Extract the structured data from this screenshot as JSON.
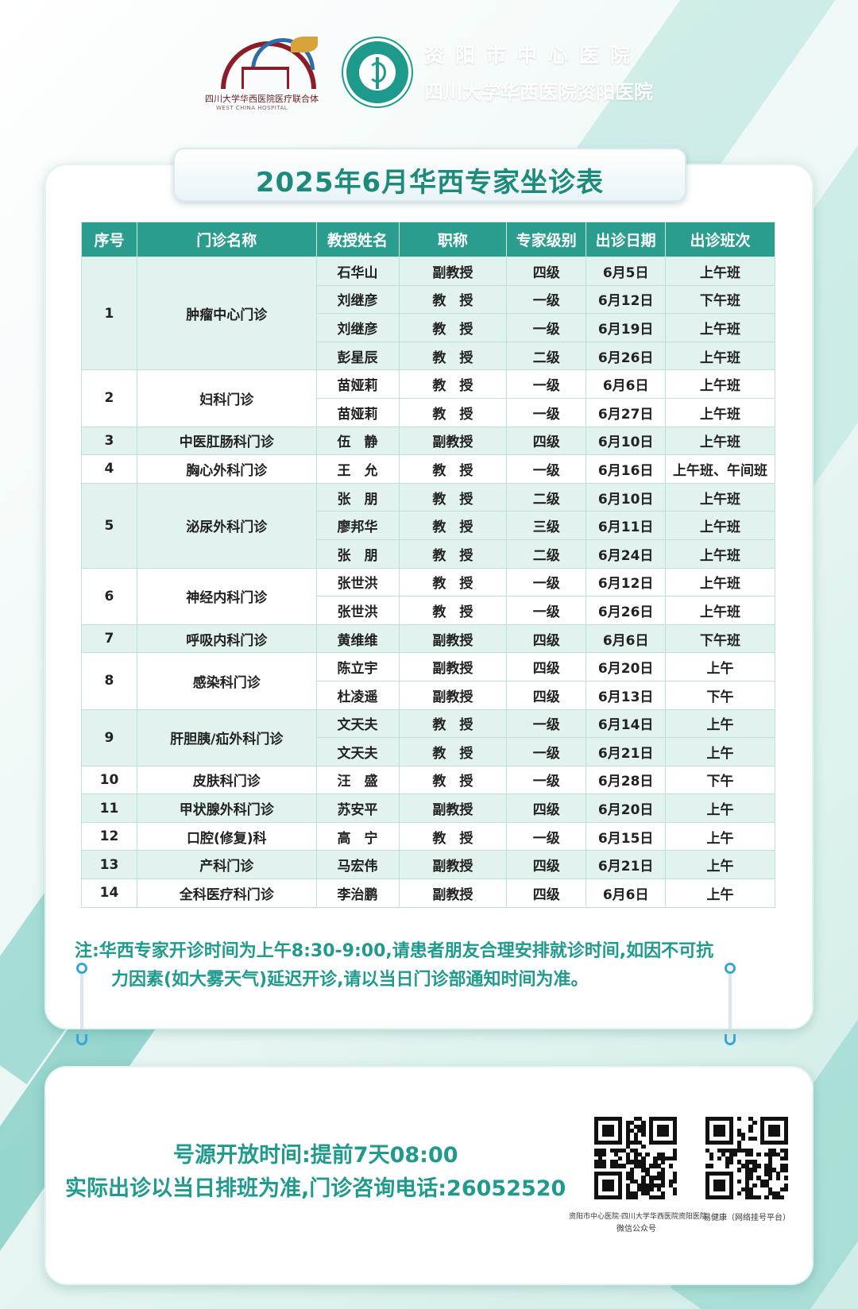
{
  "header": {
    "hospital_name": "资阳市中心医院",
    "hospital_sub": "四川大学华西医院资阳医院",
    "alliance_logo_text": "四川大学华西医院医疗联合体",
    "alliance_logo_sub": "WEST CHINA HOSPITAL"
  },
  "title": "2025年6月华西专家坐诊表",
  "table": {
    "headers": [
      "序号",
      "门诊名称",
      "教授姓名",
      "职称",
      "专家级别",
      "出诊日期",
      "出诊班次"
    ],
    "groups": [
      {
        "seq": "1",
        "clinic": "肿瘤中心门诊",
        "rows": [
          [
            "石华山",
            "副教授",
            "四级",
            "6月5日",
            "上午班"
          ],
          [
            "刘继彦",
            "教　授",
            "一级",
            "6月12日",
            "下午班"
          ],
          [
            "刘继彦",
            "教　授",
            "一级",
            "6月19日",
            "上午班"
          ],
          [
            "彭星辰",
            "教　授",
            "二级",
            "6月26日",
            "上午班"
          ]
        ]
      },
      {
        "seq": "2",
        "clinic": "妇科门诊",
        "rows": [
          [
            "苗娅莉",
            "教　授",
            "一级",
            "6月6日",
            "上午班"
          ],
          [
            "苗娅莉",
            "教　授",
            "一级",
            "6月27日",
            "上午班"
          ]
        ]
      },
      {
        "seq": "3",
        "clinic": "中医肛肠科门诊",
        "rows": [
          [
            "伍　静",
            "副教授",
            "四级",
            "6月10日",
            "上午班"
          ]
        ]
      },
      {
        "seq": "4",
        "clinic": "胸心外科门诊",
        "rows": [
          [
            "王　允",
            "教　授",
            "一级",
            "6月16日",
            "上午班、午间班"
          ]
        ]
      },
      {
        "seq": "5",
        "clinic": "泌尿外科门诊",
        "rows": [
          [
            "张　朋",
            "教　授",
            "二级",
            "6月10日",
            "上午班"
          ],
          [
            "廖邦华",
            "教　授",
            "三级",
            "6月11日",
            "上午班"
          ],
          [
            "张　朋",
            "教　授",
            "二级",
            "6月24日",
            "上午班"
          ]
        ]
      },
      {
        "seq": "6",
        "clinic": "神经内科门诊",
        "rows": [
          [
            "张世洪",
            "教　授",
            "一级",
            "6月12日",
            "上午班"
          ],
          [
            "张世洪",
            "教　授",
            "一级",
            "6月26日",
            "上午班"
          ]
        ]
      },
      {
        "seq": "7",
        "clinic": "呼吸内科门诊",
        "rows": [
          [
            "黄维维",
            "副教授",
            "四级",
            "6月6日",
            "下午班"
          ]
        ]
      },
      {
        "seq": "8",
        "clinic": "感染科门诊",
        "rows": [
          [
            "陈立宇",
            "副教授",
            "四级",
            "6月20日",
            "上午"
          ],
          [
            "杜凌遥",
            "副教授",
            "四级",
            "6月13日",
            "下午"
          ]
        ]
      },
      {
        "seq": "9",
        "clinic": "肝胆胰/疝外科门诊",
        "rows": [
          [
            "文天夫",
            "教　授",
            "一级",
            "6月14日",
            "上午"
          ],
          [
            "文天夫",
            "教　授",
            "一级",
            "6月21日",
            "上午"
          ]
        ]
      },
      {
        "seq": "10",
        "clinic": "皮肤科门诊",
        "rows": [
          [
            "汪　盛",
            "教　授",
            "一级",
            "6月28日",
            "下午"
          ]
        ]
      },
      {
        "seq": "11",
        "clinic": "甲状腺外科门诊",
        "rows": [
          [
            "苏安平",
            "副教授",
            "四级",
            "6月20日",
            "上午"
          ]
        ]
      },
      {
        "seq": "12",
        "clinic": "口腔(修复)科",
        "rows": [
          [
            "高　宁",
            "教　授",
            "一级",
            "6月15日",
            "上午"
          ]
        ]
      },
      {
        "seq": "13",
        "clinic": "产科门诊",
        "rows": [
          [
            "马宏伟",
            "副教授",
            "四级",
            "6月21日",
            "上午"
          ]
        ]
      },
      {
        "seq": "14",
        "clinic": "全科医疗科门诊",
        "rows": [
          [
            "李治鹏",
            "副教授",
            "四级",
            "6月6日",
            "上午"
          ]
        ]
      }
    ]
  },
  "note": {
    "line1": "注:华西专家开诊时间为上午8:30-9:00,请患者朋友合理安排就诊时间,如因不可抗",
    "line2": "力因素(如大雾天气)延迟开诊,请以当日门诊部通知时间为准。"
  },
  "footer": {
    "open_time": "号源开放时间:提前7天08:00",
    "consult": "实际出诊以当日排班为准,门诊咨询电话:26052520",
    "qr1_label_top": "资阳市中心医院·四川大学华西医院资阳医院",
    "qr1_label_bottom": "微信公众号",
    "qr2_label": "易健康（网络挂号平台）"
  },
  "colors": {
    "accent": "#2a9d8f",
    "accent_text": "#1f9a8c",
    "row_tint": "#e2f3ef"
  }
}
